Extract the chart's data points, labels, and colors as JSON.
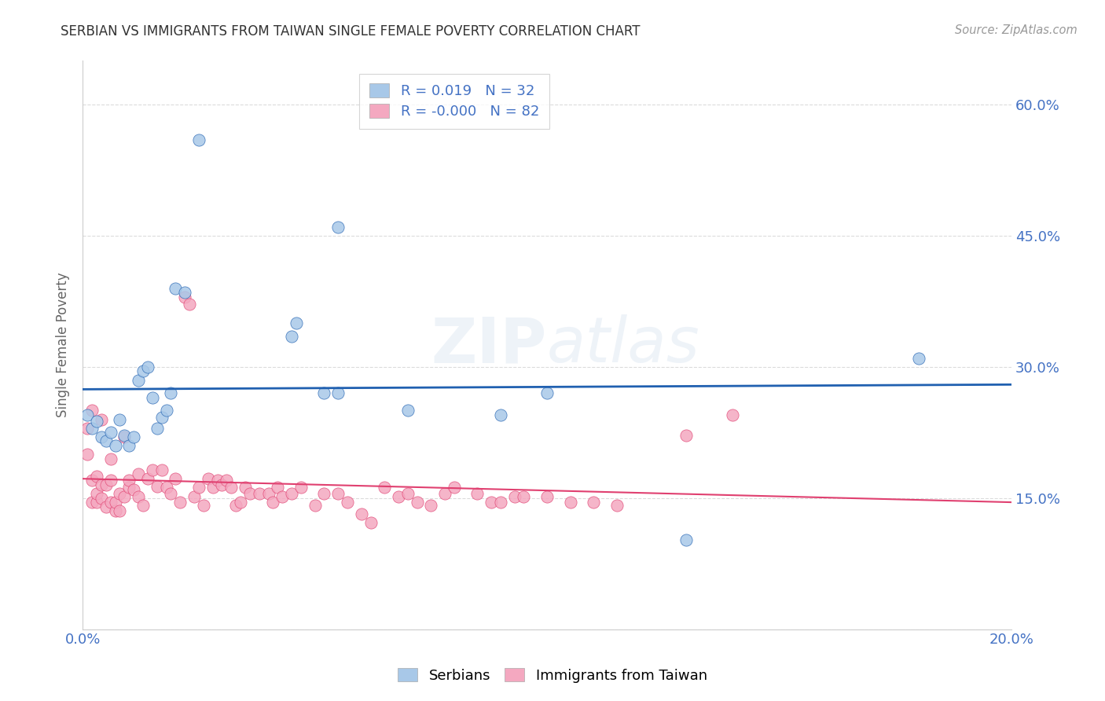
{
  "title": "SERBIAN VS IMMIGRANTS FROM TAIWAN SINGLE FEMALE POVERTY CORRELATION CHART",
  "source": "Source: ZipAtlas.com",
  "ylabel": "Single Female Poverty",
  "xlabel": "",
  "xlim": [
    0.0,
    0.2
  ],
  "ylim": [
    0.0,
    0.65
  ],
  "xticks": [
    0.0,
    0.04,
    0.08,
    0.12,
    0.16,
    0.2
  ],
  "yticks": [
    0.0,
    0.15,
    0.3,
    0.45,
    0.6
  ],
  "watermark": "ZIPatlas",
  "legend_r_serbian": " 0.019",
  "legend_n_serbian": "32",
  "legend_r_taiwan": "-0.000",
  "legend_n_taiwan": "82",
  "serbian_color": "#a8c8e8",
  "taiwan_color": "#f4a8c0",
  "serbian_line_color": "#2060b0",
  "taiwan_line_color": "#e04070",
  "grid_color": "#cccccc",
  "title_color": "#333333",
  "axis_label_color": "#666666",
  "tick_label_color": "#4472c4",
  "background_color": "#ffffff",
  "serbian_x": [
    0.001,
    0.002,
    0.003,
    0.004,
    0.005,
    0.006,
    0.007,
    0.008,
    0.009,
    0.01,
    0.011,
    0.012,
    0.013,
    0.014,
    0.015,
    0.016,
    0.017,
    0.018,
    0.019,
    0.02,
    0.022,
    0.045,
    0.046,
    0.052,
    0.055,
    0.07,
    0.09,
    0.1,
    0.055,
    0.13,
    0.18,
    0.025
  ],
  "serbian_y": [
    0.245,
    0.23,
    0.238,
    0.22,
    0.215,
    0.225,
    0.21,
    0.24,
    0.222,
    0.21,
    0.22,
    0.285,
    0.295,
    0.3,
    0.265,
    0.23,
    0.242,
    0.25,
    0.27,
    0.39,
    0.385,
    0.335,
    0.35,
    0.27,
    0.46,
    0.25,
    0.245,
    0.27,
    0.27,
    0.102,
    0.31,
    0.56
  ],
  "taiwan_x": [
    0.001,
    0.001,
    0.002,
    0.002,
    0.002,
    0.003,
    0.003,
    0.003,
    0.004,
    0.004,
    0.004,
    0.005,
    0.005,
    0.006,
    0.006,
    0.006,
    0.007,
    0.007,
    0.008,
    0.008,
    0.009,
    0.009,
    0.01,
    0.01,
    0.011,
    0.012,
    0.012,
    0.013,
    0.014,
    0.015,
    0.016,
    0.017,
    0.018,
    0.019,
    0.02,
    0.021,
    0.022,
    0.023,
    0.024,
    0.025,
    0.026,
    0.027,
    0.028,
    0.029,
    0.03,
    0.031,
    0.032,
    0.033,
    0.034,
    0.035,
    0.036,
    0.038,
    0.04,
    0.041,
    0.042,
    0.043,
    0.045,
    0.047,
    0.05,
    0.052,
    0.055,
    0.057,
    0.06,
    0.062,
    0.065,
    0.068,
    0.07,
    0.072,
    0.075,
    0.078,
    0.08,
    0.085,
    0.088,
    0.09,
    0.093,
    0.095,
    0.1,
    0.105,
    0.11,
    0.115,
    0.13,
    0.14
  ],
  "taiwan_y": [
    0.23,
    0.2,
    0.17,
    0.145,
    0.25,
    0.145,
    0.155,
    0.175,
    0.15,
    0.165,
    0.24,
    0.14,
    0.165,
    0.17,
    0.195,
    0.145,
    0.135,
    0.145,
    0.135,
    0.155,
    0.152,
    0.22,
    0.162,
    0.17,
    0.16,
    0.152,
    0.178,
    0.142,
    0.172,
    0.182,
    0.163,
    0.182,
    0.162,
    0.155,
    0.172,
    0.145,
    0.38,
    0.372,
    0.152,
    0.162,
    0.142,
    0.172,
    0.162,
    0.17,
    0.165,
    0.17,
    0.162,
    0.142,
    0.145,
    0.162,
    0.155,
    0.155,
    0.155,
    0.145,
    0.162,
    0.152,
    0.155,
    0.162,
    0.142,
    0.155,
    0.155,
    0.145,
    0.132,
    0.122,
    0.162,
    0.152,
    0.155,
    0.145,
    0.142,
    0.155,
    0.162,
    0.155,
    0.145,
    0.145,
    0.152,
    0.152,
    0.152,
    0.145,
    0.145,
    0.142,
    0.222,
    0.245
  ]
}
